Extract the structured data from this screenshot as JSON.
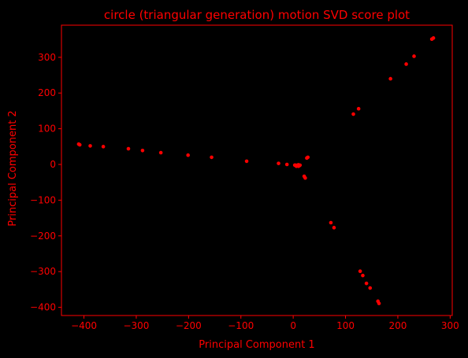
{
  "chart_data": {
    "type": "scatter",
    "title": "circle (triangular generation) motion SVD score plot",
    "xlabel": "Principal Component 1",
    "ylabel": "Principal Component 2",
    "xlim": [
      -443,
      304
    ],
    "ylim": [
      -423,
      390
    ],
    "xticks": [
      -400,
      -300,
      -200,
      -100,
      0,
      100,
      200,
      300
    ],
    "yticks": [
      -400,
      -300,
      -200,
      -100,
      0,
      100,
      200,
      300
    ],
    "xtick_labels": [
      "−400",
      "−300",
      "−200",
      "−100",
      "0",
      "100",
      "200",
      "300"
    ],
    "ytick_labels": [
      "−400",
      "−300",
      "−200",
      "−100",
      "0",
      "100",
      "200",
      "300"
    ],
    "grid": false,
    "colors": {
      "background": "#000000",
      "foreground": "#ff0000",
      "marker": "#ff0000"
    },
    "series": [
      {
        "x": [
          -410,
          -408,
          -388,
          -363,
          -315,
          -288,
          -253,
          -201,
          -156,
          -89,
          -28,
          -12,
          3,
          5,
          7,
          8,
          9,
          10,
          11,
          12,
          13,
          6,
          4,
          10,
          26,
          28,
          21,
          23,
          72,
          78,
          115,
          125,
          128,
          133,
          140,
          147,
          162,
          164,
          186,
          216,
          231,
          265,
          268
        ],
        "y": [
          57,
          55,
          52,
          50,
          44,
          39,
          33,
          26,
          20,
          9,
          3,
          0,
          -2,
          -3,
          -4,
          -2,
          -3,
          -5,
          -4,
          -3,
          -2,
          -5,
          -2,
          -1,
          18,
          20,
          -33,
          -38,
          -163,
          -177,
          141,
          156,
          -299,
          -311,
          -333,
          -346,
          -383,
          -389,
          240,
          281,
          303,
          351,
          354
        ]
      }
    ]
  }
}
